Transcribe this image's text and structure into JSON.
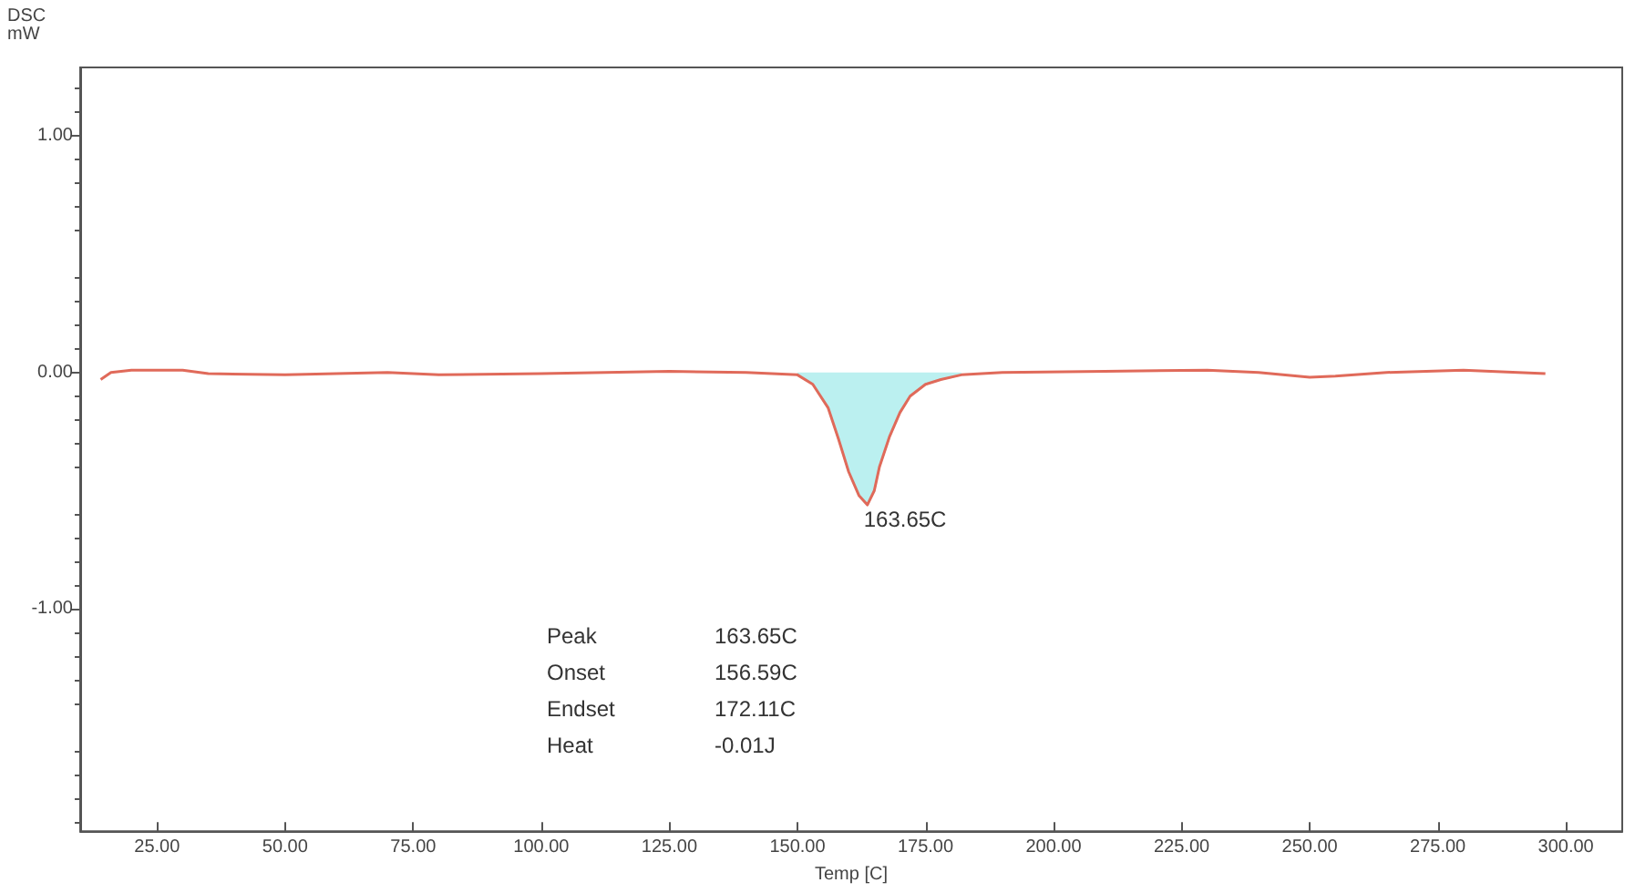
{
  "chart_data": {
    "type": "line",
    "xlabel": "Temp [C]",
    "ylabel": "DSC\nmW",
    "xlim": [
      10,
      311
    ],
    "ylim": [
      -1.94,
      1.29
    ],
    "xticks": [
      {
        "value": 25,
        "label": "25.00"
      },
      {
        "value": 50,
        "label": "50.00"
      },
      {
        "value": 75,
        "label": "75.00"
      },
      {
        "value": 100,
        "label": "100.00"
      },
      {
        "value": 125,
        "label": "125.00"
      },
      {
        "value": 150,
        "label": "150.00"
      },
      {
        "value": 175,
        "label": "175.00"
      },
      {
        "value": 200,
        "label": "200.00"
      },
      {
        "value": 225,
        "label": "225.00"
      },
      {
        "value": 250,
        "label": "250.00"
      },
      {
        "value": 275,
        "label": "275.00"
      },
      {
        "value": 300,
        "label": "300.00"
      }
    ],
    "yticks": [
      {
        "value": 1,
        "label": "1.00"
      },
      {
        "value": 0,
        "label": "0.00"
      },
      {
        "value": -1,
        "label": "-1.00"
      }
    ],
    "grid": false,
    "marker": "none",
    "line_style": "solid",
    "series": [
      {
        "color": "#e06a5a",
        "x": [
          14,
          16,
          20,
          30,
          35,
          50,
          70,
          80,
          100,
          125,
          140,
          150,
          153,
          156,
          158,
          160,
          162,
          163.65,
          165,
          166,
          168,
          170,
          172,
          175,
          178,
          182,
          190,
          210,
          230,
          240,
          250,
          255,
          265,
          280,
          296
        ],
        "values": [
          -0.03,
          0.0,
          0.01,
          0.01,
          -0.005,
          -0.01,
          0.0,
          -0.01,
          -0.005,
          0.005,
          0.0,
          -0.01,
          -0.05,
          -0.15,
          -0.28,
          -0.42,
          -0.52,
          -0.56,
          -0.5,
          -0.4,
          -0.27,
          -0.17,
          -0.1,
          -0.05,
          -0.03,
          -0.01,
          0.0,
          0.005,
          0.01,
          0.0,
          -0.02,
          -0.015,
          0.0,
          0.01,
          -0.005
        ]
      },
      {
        "type": "area",
        "color": "#8ee6e6",
        "x": [
          150,
          153,
          156,
          158,
          160,
          162,
          163.65,
          165,
          166,
          168,
          170,
          172,
          175,
          178,
          182
        ],
        "values": [
          -0.01,
          -0.05,
          -0.15,
          -0.28,
          -0.42,
          -0.52,
          -0.56,
          -0.5,
          -0.4,
          -0.27,
          -0.17,
          -0.1,
          -0.05,
          -0.03,
          -0.01
        ]
      }
    ],
    "annotations": [
      {
        "text": "163.65C",
        "x": 163.65,
        "y": -0.56
      },
      "Peak",
      "163.65C",
      "Onset",
      "156.59C",
      "Endset",
      "172.11C",
      "Heat",
      "-0.01J"
    ]
  }
}
